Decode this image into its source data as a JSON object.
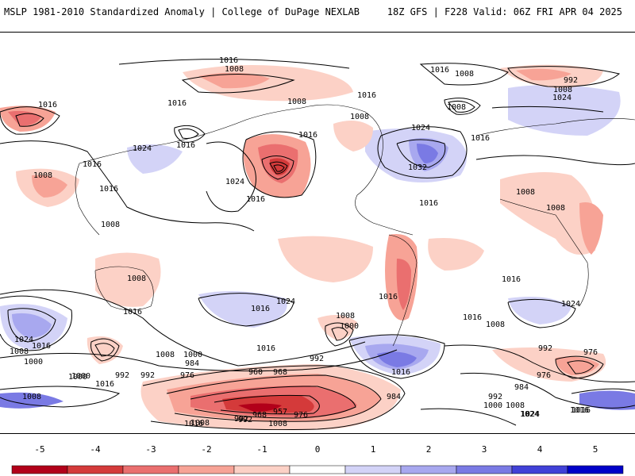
{
  "header": {
    "title": "MSLP 1981-2010 Standardized Anomaly | College of DuPage NEXLAB",
    "model_info": "18Z GFS | F228 Valid: 06Z FRI APR 04 2025"
  },
  "colorbar": {
    "ticks": [
      "-5",
      "-4",
      "-3",
      "-2",
      "-1",
      "0",
      "1",
      "2",
      "3",
      "4",
      "5"
    ],
    "colors": [
      "#b2001a",
      "#d43a3a",
      "#ea6f6f",
      "#f7a396",
      "#fcd1c6",
      "#ffffff",
      "#d3d3f7",
      "#a8a8ef",
      "#7a7ae4",
      "#4141d7",
      "#0000c8"
    ]
  },
  "map": {
    "isobar_labels": [
      "1016",
      "1008",
      "1016",
      "1008",
      "992",
      "1008",
      "1024",
      "1016",
      "1008",
      "1016",
      "1008",
      "1008",
      "1016",
      "1024",
      "1016",
      "1016",
      "1024",
      "1032",
      "1016",
      "1016",
      "1024",
      "1016",
      "1008",
      "1008",
      "1016",
      "1008",
      "1008",
      "1016",
      "1016",
      "1024",
      "1016",
      "1000",
      "1008",
      "1016",
      "1016",
      "1024",
      "1008",
      "1000",
      "1016",
      "1016",
      "1008",
      "992",
      "976",
      "1024",
      "1016",
      "1008",
      "1000",
      "992",
      "984",
      "976",
      "992",
      "960",
      "968",
      "984",
      "1016",
      "992",
      "1000",
      "1008",
      "1024",
      "1016",
      "992",
      "968",
      "957",
      "976",
      "1016",
      "992",
      "1008",
      "1016",
      "992",
      "1000",
      "1008",
      "984",
      "976",
      "1000",
      "1008",
      "1024",
      "1016",
      "1008"
    ]
  }
}
